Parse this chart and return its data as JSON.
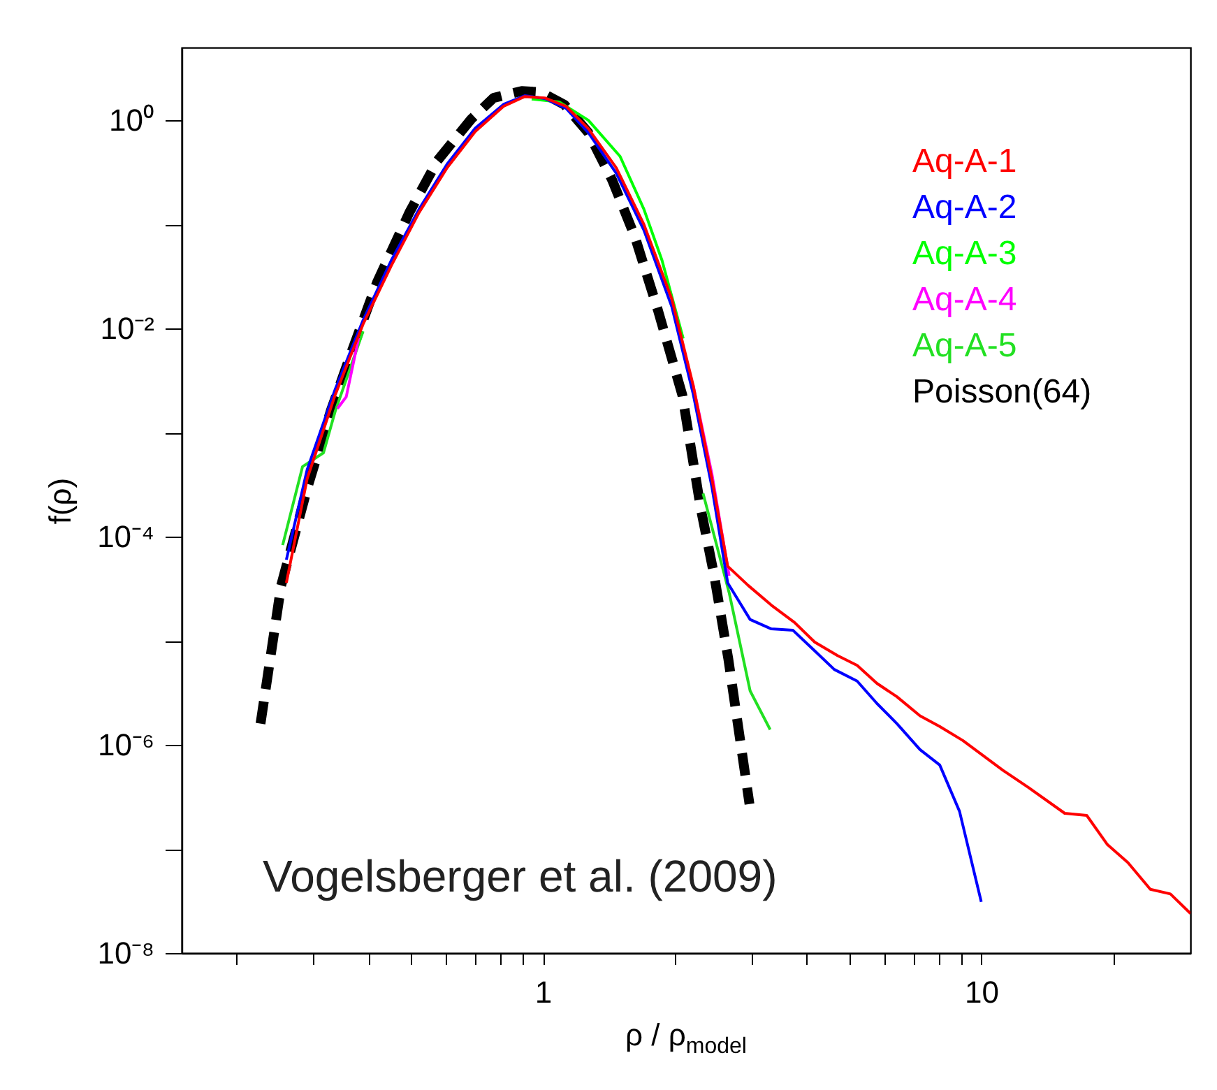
{
  "chart_data": {
    "type": "line",
    "ylabel": "f(ρ)",
    "xlabel": "ρ / ρ$_{model}$",
    "log": "xy",
    "legend": "top right",
    "xlim": [
      0.15,
      30
    ],
    "ylim": [
      1e-08,
      5
    ],
    "xticks": [
      {
        "value": 0.2,
        "label": null
      },
      {
        "value": 0.3,
        "label": null
      },
      {
        "value": 0.4,
        "label": null
      },
      {
        "value": 0.5,
        "label": null
      },
      {
        "value": 0.6,
        "label": null
      },
      {
        "value": 0.7,
        "label": null
      },
      {
        "value": 0.8,
        "label": null
      },
      {
        "value": 0.9,
        "label": null
      },
      1,
      {
        "value": 2,
        "label": null
      },
      {
        "value": 3,
        "label": null
      },
      {
        "value": 4,
        "label": null
      },
      {
        "value": 5,
        "label": null
      },
      {
        "value": 6,
        "label": null
      },
      {
        "value": 7,
        "label": null
      },
      {
        "value": 8,
        "label": null
      },
      {
        "value": 9,
        "label": null
      },
      10,
      {
        "value": 20,
        "label": null
      }
    ],
    "yticks": [
      {
        "value": 1e-08,
        "label": "10⁻⁸"
      },
      {
        "value": 1e-07,
        "label": null
      },
      {
        "value": 1e-06,
        "label": "10⁻⁶"
      },
      {
        "value": 1e-05,
        "label": null
      },
      {
        "value": 0.0001,
        "label": "10⁻⁴"
      },
      {
        "value": 0.001,
        "label": null
      },
      {
        "value": 0.01,
        "label": "10⁻²"
      },
      {
        "value": 0.1,
        "label": null
      },
      {
        "value": 1,
        "label": "10⁰"
      }
    ],
    "annotations": [
      "Vogelsberger et al. (2009)"
    ],
    "series": [
      {
        "name": "Aq-A-1",
        "color": "#ff0000",
        "x": [
          0.26,
          0.29,
          0.336,
          0.389,
          0.451,
          0.522,
          0.605,
          0.701,
          0.813,
          0.909,
          1.01,
          1.13,
          1.27,
          1.47,
          1.7,
          1.97,
          2.2,
          2.43,
          2.64,
          2.94,
          3.32,
          3.75,
          4.17,
          4.7,
          5.21,
          5.78,
          6.42,
          7.25,
          8.04,
          9.08,
          11.2,
          12.8,
          15.5,
          17.4,
          19.4,
          21.6,
          24.3,
          27,
          30
        ],
        "values": [
          3.6e-05,
          0.00036,
          0.0023,
          0.011,
          0.04,
          0.13,
          0.35,
          0.78,
          1.36,
          1.69,
          1.64,
          1.36,
          0.83,
          0.35,
          0.1,
          0.019,
          0.0029,
          0.00036,
          5.2e-05,
          3.4e-05,
          2.2e-05,
          1.5e-05,
          9.7e-06,
          7.2e-06,
          5.8e-06,
          3.9e-06,
          2.9e-06,
          1.9e-06,
          1.5e-06,
          1.1e-06,
          5.7e-07,
          3.9e-07,
          2.2e-07,
          2.1e-07,
          1.1e-07,
          7.4e-08,
          4.1e-08,
          3.7e-08,
          2.4e-08
        ]
      },
      {
        "name": "Aq-A-2",
        "color": "#0000ff",
        "x": [
          0.26,
          0.29,
          0.336,
          0.389,
          0.451,
          0.522,
          0.605,
          0.701,
          0.813,
          0.909,
          1.01,
          1.13,
          1.27,
          1.47,
          1.7,
          1.97,
          2.2,
          2.43,
          2.64,
          2.97,
          3.32,
          3.72,
          4.17,
          4.62,
          5.21,
          5.78,
          6.42,
          7.25,
          8.04,
          8.92,
          10
        ],
        "values": [
          6e-05,
          0.00044,
          0.0026,
          0.012,
          0.045,
          0.14,
          0.38,
          0.84,
          1.42,
          1.72,
          1.62,
          1.3,
          0.76,
          0.31,
          0.088,
          0.016,
          0.0024,
          0.0003,
          3.6e-05,
          1.6e-05,
          1.3e-05,
          1.26e-05,
          8e-06,
          5.3e-06,
          4.1e-06,
          2.5e-06,
          1.6e-06,
          9e-07,
          6.4e-07,
          2.3e-07,
          3.1e-08
        ]
      },
      {
        "name": "Aq-A-3",
        "color": "#00ff00",
        "x": [
          0.943,
          1.09,
          1.27,
          1.5,
          1.7,
          1.87,
          2.09
        ],
        "values": [
          1.6,
          1.5,
          1.0,
          0.45,
          0.14,
          0.045,
          0.008
        ]
      },
      {
        "name": "Aq-A-4",
        "color": "#ff00ff",
        "x": [
          0.34,
          0.356,
          0.38,
          0.451,
          0.522,
          0.605,
          0.701,
          0.813,
          0.909,
          1.01,
          1.13,
          1.27,
          1.47,
          1.7,
          1.97,
          2.2,
          2.43,
          2.66
        ],
        "values": [
          0.0017,
          0.0022,
          0.0081,
          null,
          null,
          null,
          null,
          null,
          null,
          null,
          null,
          null,
          null,
          null,
          null,
          0.0029,
          0.0004,
          4.2e-05
        ]
      },
      {
        "name": "Aq-A-5",
        "color": "#22e022",
        "x": [
          0.255,
          0.283,
          0.316,
          0.336,
          0.389,
          1,
          2.32,
          2.66,
          2.97,
          3.3
        ],
        "values": [
          8.3e-05,
          0.00047,
          0.00064,
          0.0016,
          0.0094,
          null,
          0.00026,
          2.9e-05,
          3.3e-06,
          1.4e-06
        ]
      },
      {
        "name": "Poisson(64)",
        "color": "#000000",
        "line_style": "dashed",
        "x": [
          0.227,
          0.253,
          0.29,
          0.328,
          0.369,
          0.419,
          0.496,
          0.575,
          0.687,
          0.772,
          0.895,
          0.99,
          1.12,
          1.27,
          1.44,
          1.62,
          1.83,
          2.08,
          2.29,
          2.46,
          2.65,
          2.96
        ],
        "values": [
          1.6e-06,
          3.4e-05,
          0.00029,
          0.0016,
          0.0065,
          0.028,
          0.13,
          0.41,
          1.03,
          1.64,
          1.91,
          1.86,
          1.41,
          0.76,
          0.265,
          0.077,
          0.015,
          0.0023,
          0.00019,
          4.2e-05,
          6.6e-06,
          2.7e-07
        ]
      }
    ]
  }
}
